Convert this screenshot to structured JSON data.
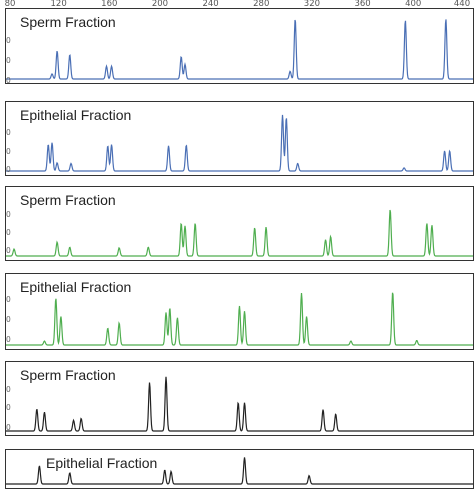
{
  "chart_data": {
    "type": "line",
    "x_ticks": [
      "80",
      "120",
      "160",
      "200",
      "240",
      "280",
      "320",
      "360",
      "400",
      "440"
    ],
    "x_tick_values": [
      80,
      120,
      160,
      200,
      240,
      280,
      320,
      360,
      400,
      440
    ],
    "xlim": [
      80,
      448
    ],
    "y_tick_labels": [
      "0",
      "0",
      "0"
    ],
    "panels": [
      {
        "label": "Sperm Fraction",
        "color": "#4a6fb5",
        "peaks": [
          [
            114,
            0.08
          ],
          [
            118,
            0.44
          ],
          [
            128,
            0.38
          ],
          [
            157,
            0.2
          ],
          [
            161,
            0.2
          ],
          [
            216,
            0.35
          ],
          [
            219,
            0.23
          ],
          [
            302,
            0.12
          ],
          [
            306,
            0.94
          ],
          [
            393,
            0.92
          ],
          [
            425,
            0.94
          ]
        ]
      },
      {
        "label": "Epithelial Fraction",
        "color": "#4a6fb5",
        "peaks": [
          [
            111,
            0.42
          ],
          [
            114,
            0.45
          ],
          [
            118,
            0.13
          ],
          [
            129,
            0.12
          ],
          [
            158,
            0.4
          ],
          [
            161,
            0.42
          ],
          [
            206,
            0.4
          ],
          [
            220,
            0.41
          ],
          [
            296,
            0.89
          ],
          [
            299,
            0.85
          ],
          [
            308,
            0.12
          ],
          [
            392,
            0.05
          ],
          [
            424,
            0.32
          ],
          [
            428,
            0.32
          ]
        ]
      },
      {
        "label": "Sperm Fraction",
        "color": "#4fae4f",
        "peaks": [
          [
            84,
            0.11
          ],
          [
            118,
            0.22
          ],
          [
            128,
            0.14
          ],
          [
            167,
            0.13
          ],
          [
            190,
            0.14
          ],
          [
            216,
            0.52
          ],
          [
            219,
            0.48
          ],
          [
            227,
            0.52
          ],
          [
            274,
            0.45
          ],
          [
            283,
            0.46
          ],
          [
            330,
            0.26
          ],
          [
            334,
            0.31
          ],
          [
            381,
            0.74
          ],
          [
            410,
            0.52
          ],
          [
            414,
            0.49
          ]
        ]
      },
      {
        "label": "Epithelial Fraction",
        "color": "#4fae4f",
        "peaks": [
          [
            108,
            0.06
          ],
          [
            117,
            0.72
          ],
          [
            121,
            0.44
          ],
          [
            158,
            0.26
          ],
          [
            167,
            0.34
          ],
          [
            204,
            0.5
          ],
          [
            207,
            0.57
          ],
          [
            213,
            0.42
          ],
          [
            262,
            0.6
          ],
          [
            266,
            0.52
          ],
          [
            311,
            0.8
          ],
          [
            315,
            0.44
          ],
          [
            350,
            0.06
          ],
          [
            383,
            0.82
          ],
          [
            402,
            0.07
          ]
        ]
      },
      {
        "label": "Sperm Fraction",
        "color": "#222222",
        "peaks": [
          [
            102,
            0.35
          ],
          [
            108,
            0.3
          ],
          [
            131,
            0.17
          ],
          [
            137,
            0.2
          ],
          [
            191,
            0.77
          ],
          [
            204,
            0.86
          ],
          [
            261,
            0.45
          ],
          [
            266,
            0.45
          ],
          [
            328,
            0.34
          ],
          [
            338,
            0.27
          ]
        ]
      },
      {
        "label": "Epithelial Fraction",
        "color": "#222222",
        "peaks": [
          [
            104,
            0.65
          ],
          [
            128,
            0.4
          ],
          [
            203,
            0.5
          ],
          [
            208,
            0.45
          ],
          [
            266,
            0.95
          ],
          [
            317,
            0.3
          ]
        ]
      }
    ]
  }
}
